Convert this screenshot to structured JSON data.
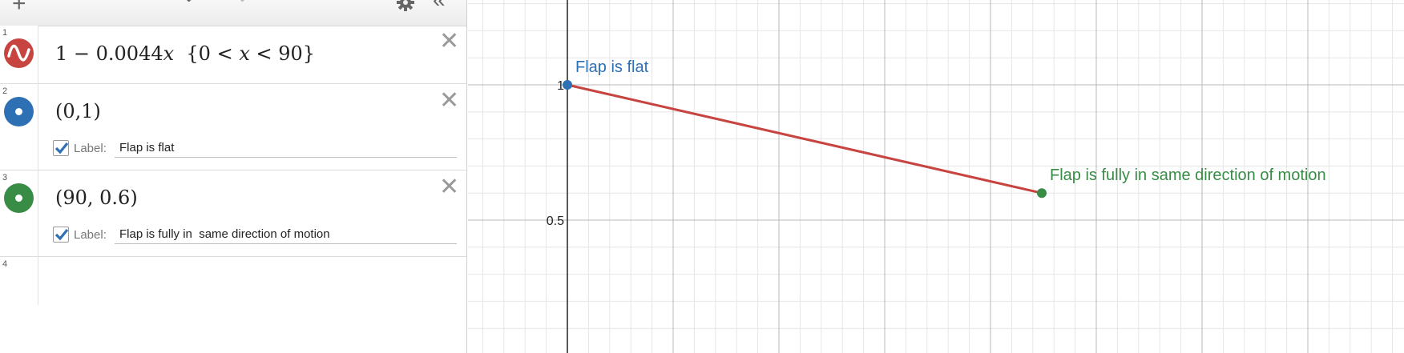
{
  "toolbar": {
    "add_label": "+",
    "undo_icon": "undo-icon",
    "redo_icon": "redo-icon",
    "settings_icon": "gear-icon",
    "collapse_icon": "double-chevron-left-icon"
  },
  "expressions": [
    {
      "num": "1",
      "text": "1 − 0.0044𝑥  {0 < 𝑥 < 90}",
      "color": "#c74440",
      "marker": "wave"
    },
    {
      "num": "2",
      "text": "(0,1)",
      "color": "#2d70b3",
      "marker": "point",
      "label_caption": "Label:",
      "label_value": "Flap is flat",
      "label_checked": true
    },
    {
      "num": "3",
      "text": "(90, 0.6)",
      "color": "#388c46",
      "marker": "point",
      "label_caption": "Label:",
      "label_value": "Flap is fully in  same direction of motion",
      "label_checked": true
    },
    {
      "num": "4"
    }
  ],
  "graph": {
    "y_tick_labels": [
      "1",
      "0.5"
    ],
    "point_labels": {
      "p1": "Flap is flat",
      "p2": "Flap is fully in same direction of motion"
    },
    "colors": {
      "line": "#c74440",
      "p1": "#2d70b3",
      "p2": "#388c46"
    }
  },
  "chart_data": {
    "type": "line",
    "series": [
      {
        "x": [
          0,
          90
        ],
        "y": [
          1,
          0.6
        ]
      }
    ],
    "points": [
      {
        "x": 0,
        "y": 1,
        "label": "Flap is flat"
      },
      {
        "x": 90,
        "y": 0.6,
        "label": "Flap is fully in same direction of motion"
      }
    ],
    "y_ticks": [
      1,
      0.5
    ],
    "grid": true
  }
}
